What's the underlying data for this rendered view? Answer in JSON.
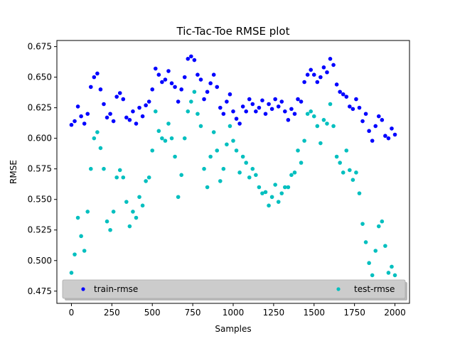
{
  "chart_data": {
    "type": "scatter",
    "title": "Tic-Tac-Toe RMSE plot",
    "xlabel": "Samples",
    "ylabel": "RMSE",
    "xlim": [
      -90,
      2090
    ],
    "ylim": [
      0.465,
      0.68
    ],
    "xticks": [
      0,
      250,
      500,
      750,
      1000,
      1250,
      1500,
      1750,
      2000
    ],
    "yticks": [
      0.475,
      0.5,
      0.525,
      0.55,
      0.575,
      0.6,
      0.625,
      0.65,
      0.675
    ],
    "legend_position": "bottom (two columns)",
    "grid": false,
    "series": [
      {
        "name": "train-rmse",
        "color": "#0000ff",
        "x": [
          0,
          20,
          40,
          60,
          80,
          100,
          120,
          140,
          160,
          180,
          200,
          220,
          240,
          260,
          280,
          300,
          320,
          340,
          360,
          380,
          400,
          420,
          440,
          460,
          480,
          500,
          520,
          540,
          560,
          580,
          600,
          620,
          640,
          660,
          680,
          700,
          720,
          740,
          760,
          780,
          800,
          820,
          840,
          860,
          880,
          900,
          920,
          940,
          960,
          980,
          1000,
          1020,
          1040,
          1060,
          1080,
          1100,
          1120,
          1140,
          1160,
          1180,
          1200,
          1220,
          1240,
          1260,
          1280,
          1300,
          1320,
          1340,
          1360,
          1380,
          1400,
          1420,
          1440,
          1460,
          1480,
          1500,
          1520,
          1540,
          1560,
          1580,
          1600,
          1620,
          1640,
          1660,
          1680,
          1700,
          1720,
          1740,
          1760,
          1780,
          1800,
          1820,
          1840,
          1860,
          1880,
          1900,
          1920,
          1940,
          1960,
          1980,
          2000
        ],
        "y": [
          0.611,
          0.614,
          0.626,
          0.618,
          0.612,
          0.62,
          0.642,
          0.65,
          0.653,
          0.64,
          0.628,
          0.617,
          0.62,
          0.614,
          0.634,
          0.637,
          0.632,
          0.617,
          0.615,
          0.622,
          0.612,
          0.625,
          0.618,
          0.627,
          0.63,
          0.64,
          0.657,
          0.652,
          0.646,
          0.648,
          0.655,
          0.645,
          0.642,
          0.63,
          0.64,
          0.65,
          0.665,
          0.667,
          0.664,
          0.652,
          0.648,
          0.632,
          0.638,
          0.645,
          0.652,
          0.642,
          0.625,
          0.62,
          0.63,
          0.636,
          0.622,
          0.616,
          0.612,
          0.626,
          0.622,
          0.632,
          0.628,
          0.622,
          0.625,
          0.631,
          0.62,
          0.628,
          0.624,
          0.632,
          0.626,
          0.63,
          0.622,
          0.615,
          0.624,
          0.62,
          0.632,
          0.63,
          0.646,
          0.652,
          0.656,
          0.652,
          0.646,
          0.65,
          0.658,
          0.654,
          0.665,
          0.66,
          0.644,
          0.638,
          0.636,
          0.634,
          0.626,
          0.624,
          0.632,
          0.625,
          0.614,
          0.62,
          0.606,
          0.598,
          0.61,
          0.618,
          0.615,
          0.602,
          0.6,
          0.608,
          0.603
        ]
      },
      {
        "name": "test-rmse",
        "color": "#00bfbf",
        "x": [
          0,
          20,
          40,
          60,
          80,
          100,
          120,
          140,
          160,
          180,
          200,
          220,
          240,
          260,
          280,
          300,
          320,
          340,
          360,
          380,
          400,
          420,
          440,
          460,
          480,
          500,
          520,
          540,
          560,
          580,
          600,
          620,
          640,
          660,
          680,
          700,
          720,
          740,
          760,
          780,
          800,
          820,
          840,
          860,
          880,
          900,
          920,
          940,
          960,
          980,
          1000,
          1020,
          1040,
          1060,
          1080,
          1100,
          1120,
          1140,
          1160,
          1180,
          1200,
          1220,
          1240,
          1260,
          1280,
          1300,
          1320,
          1340,
          1360,
          1380,
          1400,
          1420,
          1440,
          1460,
          1480,
          1500,
          1520,
          1540,
          1560,
          1580,
          1600,
          1620,
          1640,
          1660,
          1680,
          1700,
          1720,
          1740,
          1760,
          1780,
          1800,
          1820,
          1840,
          1860,
          1880,
          1900,
          1920,
          1940,
          1960,
          1980,
          2000
        ],
        "y": [
          0.49,
          0.505,
          0.535,
          0.52,
          0.508,
          0.54,
          0.575,
          0.6,
          0.605,
          0.592,
          0.575,
          0.532,
          0.525,
          0.54,
          0.568,
          0.574,
          0.568,
          0.548,
          0.528,
          0.54,
          0.535,
          0.552,
          0.545,
          0.565,
          0.568,
          0.59,
          0.622,
          0.606,
          0.6,
          0.598,
          0.612,
          0.6,
          0.585,
          0.552,
          0.57,
          0.6,
          0.622,
          0.63,
          0.638,
          0.62,
          0.61,
          0.575,
          0.56,
          0.585,
          0.605,
          0.59,
          0.565,
          0.575,
          0.595,
          0.61,
          0.598,
          0.59,
          0.572,
          0.585,
          0.58,
          0.568,
          0.575,
          0.57,
          0.56,
          0.555,
          0.556,
          0.545,
          0.552,
          0.562,
          0.548,
          0.555,
          0.56,
          0.56,
          0.57,
          0.572,
          0.59,
          0.58,
          0.598,
          0.62,
          0.622,
          0.618,
          0.61,
          0.596,
          0.615,
          0.612,
          0.628,
          0.61,
          0.585,
          0.58,
          0.572,
          0.59,
          0.574,
          0.566,
          0.572,
          0.555,
          0.53,
          0.515,
          0.498,
          0.488,
          0.508,
          0.528,
          0.532,
          0.512,
          0.49,
          0.495,
          0.488
        ]
      }
    ]
  }
}
